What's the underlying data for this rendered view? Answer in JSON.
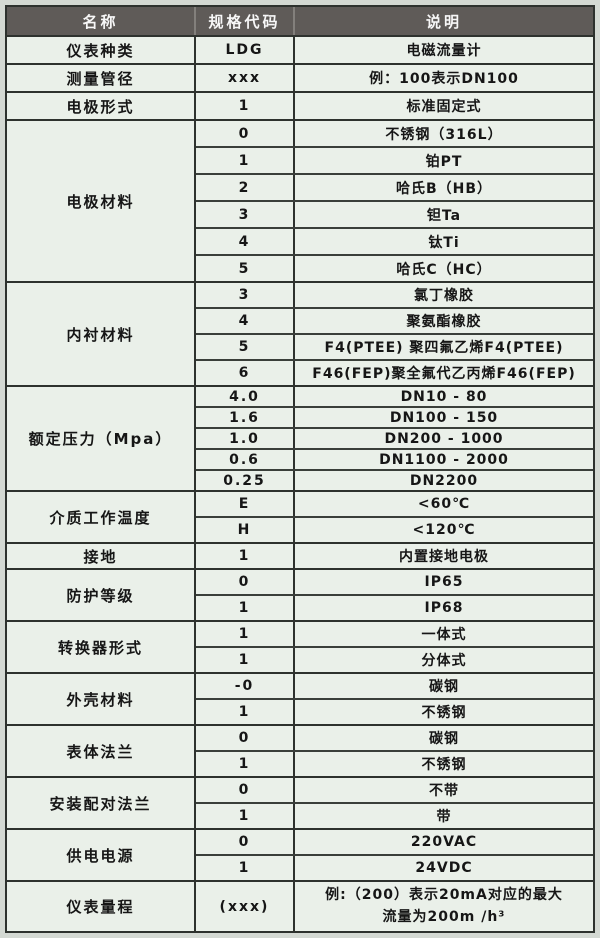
{
  "table": {
    "headers": [
      {
        "label": "名称"
      },
      {
        "label": "规格代码"
      },
      {
        "label": "说明"
      }
    ],
    "groups": [
      {
        "name": "仪表种类",
        "rows": [
          {
            "code": "LDG",
            "desc": "电磁流量计"
          }
        ]
      },
      {
        "name": "测量管径",
        "rows": [
          {
            "code": "xxx",
            "desc": "例：100表示DN100"
          }
        ]
      },
      {
        "name": "电极形式",
        "rows": [
          {
            "code": "1",
            "desc": "标准固定式"
          }
        ]
      },
      {
        "name": "电极材料",
        "rows": [
          {
            "code": "0",
            "desc": "不锈钢（316L）"
          },
          {
            "code": "1",
            "desc": "铂PT"
          },
          {
            "code": "2",
            "desc": "哈氏B（HB）"
          },
          {
            "code": "3",
            "desc": "钽Ta"
          },
          {
            "code": "4",
            "desc": "钛Ti"
          },
          {
            "code": "5",
            "desc": "哈氏C（HC）"
          }
        ]
      },
      {
        "name": "内衬材料",
        "rows": [
          {
            "code": "3",
            "desc": "氯丁橡胶"
          },
          {
            "code": "4",
            "desc": "聚氨酯橡胶"
          },
          {
            "code": "5",
            "desc": "F4(PTEE) 聚四氟乙烯F4(PTEE)"
          },
          {
            "code": "6",
            "desc": "F46(FEP)聚全氟代乙丙烯F46(FEP)"
          }
        ]
      },
      {
        "name": "额定压力（Mpa）",
        "rows": [
          {
            "code": "4.0",
            "desc": "DN10 - 80"
          },
          {
            "code": "1.6",
            "desc": "DN100 - 150"
          },
          {
            "code": "1.0",
            "desc": "DN200 - 1000"
          },
          {
            "code": "0.6",
            "desc": "DN1100 - 2000"
          },
          {
            "code": "0.25",
            "desc": "DN2200"
          }
        ]
      },
      {
        "name": "介质工作温度",
        "rows": [
          {
            "code": "E",
            "desc": "<60℃"
          },
          {
            "code": "H",
            "desc": "<120℃"
          }
        ]
      },
      {
        "name": "接地",
        "rows": [
          {
            "code": "1",
            "desc": "内置接地电极"
          }
        ]
      },
      {
        "name": "防护等级",
        "rows": [
          {
            "code": "0",
            "desc": "IP65"
          },
          {
            "code": "1",
            "desc": "IP68"
          }
        ]
      },
      {
        "name": "转换器形式",
        "rows": [
          {
            "code": "1",
            "desc": "一体式"
          },
          {
            "code": "1",
            "desc": "分体式"
          }
        ]
      },
      {
        "name": "外壳材料",
        "rows": [
          {
            "code": "-0",
            "desc": "碳钢"
          },
          {
            "code": "1",
            "desc": "不锈钢"
          }
        ]
      },
      {
        "name": "表体法兰",
        "rows": [
          {
            "code": "0",
            "desc": "碳钢"
          },
          {
            "code": "1",
            "desc": "不锈钢"
          }
        ]
      },
      {
        "name": "安装配对法兰",
        "rows": [
          {
            "code": "0",
            "desc": "不带"
          },
          {
            "code": "1",
            "desc": "带"
          }
        ]
      },
      {
        "name": "供电电源",
        "rows": [
          {
            "code": "0",
            "desc": "220VAC"
          },
          {
            "code": "1",
            "desc": "24VDC"
          }
        ]
      },
      {
        "name": "仪表量程",
        "rows": [
          {
            "code": "(xxx)",
            "desc": "例:（200）表示20mA对应的最大",
            "desc2": "流量为200m /h³"
          }
        ]
      }
    ],
    "colors": {
      "header_bg": "#5f5b58",
      "header_text": "#ffffff",
      "row_bg": "#eaf0e9",
      "border": "#2e322e"
    }
  }
}
